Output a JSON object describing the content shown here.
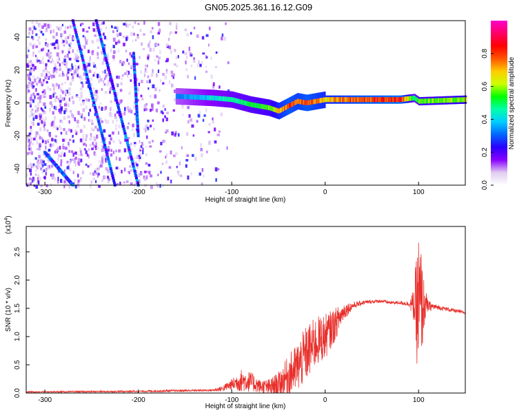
{
  "figure_title": "GN05.2025.361.16.12.G09",
  "chart_data": [
    {
      "type": "heatmap",
      "name": "spectrogram",
      "xlabel": "Height of straight line (km)",
      "ylabel": "Frequency (Hz)",
      "xlim": [
        -320,
        150
      ],
      "ylim": [
        -50,
        50
      ],
      "xticks": [
        -300,
        -200,
        -100,
        0,
        100
      ],
      "yticks": [
        -40,
        -20,
        0,
        20,
        40
      ],
      "colorbar": {
        "label": "Normalized spectral amplitude",
        "range": [
          0,
          1
        ],
        "ticks": [
          "0.0",
          "0.2",
          "0.4",
          "0.6",
          "0.8"
        ],
        "colormap": [
          "#ffffff",
          "#e0ccf0",
          "#8800ff",
          "#2a00ff",
          "#0066ff",
          "#00ccff",
          "#00ffaa",
          "#00ff00",
          "#ccff00",
          "#ffcc00",
          "#ff5500",
          "#ff0000",
          "#ff0066",
          "#ff00cc"
        ]
      },
      "dominant_ridge": {
        "description": "main signal line near 0 Hz",
        "x": [
          -160,
          -120,
          -100,
          -80,
          -60,
          -50,
          -40,
          -30,
          -20,
          -10,
          0,
          40,
          80,
          95,
          100,
          150
        ],
        "frequency": [
          4,
          3,
          2,
          -1,
          -3,
          -5,
          -2,
          1,
          0,
          1,
          2,
          2,
          2,
          3,
          1,
          2
        ],
        "amplitude": [
          0.35,
          0.45,
          0.5,
          0.55,
          0.6,
          0.75,
          0.85,
          0.8,
          0.85,
          0.8,
          0.75,
          0.85,
          0.9,
          0.5,
          0.6,
          0.65
        ]
      },
      "diagonal_streaks": [
        {
          "x0": -270,
          "f0": 50,
          "x1": -225,
          "f1": -50
        },
        {
          "x0": -245,
          "f0": 50,
          "x1": -200,
          "f1": -50
        },
        {
          "x0": -300,
          "f0": -30,
          "x1": -270,
          "f1": -50
        },
        {
          "x0": -205,
          "f0": 30,
          "x1": -200,
          "f1": -20
        }
      ],
      "noise_region": {
        "x_start": -320,
        "x_end": -130,
        "f_min": -50,
        "f_max": 50
      }
    },
    {
      "type": "line",
      "name": "snr",
      "xlabel": "Height of straight line (km)",
      "ylabel": "SNR (10 * v/v)",
      "scale_label": "(x10",
      "scale_exponent": "4",
      "xlim": [
        -320,
        150
      ],
      "ylim": [
        0,
        2.95
      ],
      "xticks": [
        -300,
        -200,
        -100,
        0,
        100
      ],
      "yticks": [
        "0.0",
        "0.5",
        "1.0",
        "1.5",
        "2.0",
        "2.5"
      ],
      "color": "#e8302c",
      "envelope": {
        "x": [
          -320,
          -200,
          -160,
          -120,
          -110,
          -100,
          -90,
          -80,
          -70,
          -60,
          -50,
          -40,
          -30,
          -20,
          -10,
          0,
          10,
          20,
          30,
          40,
          50,
          60,
          70,
          80,
          90,
          95,
          100,
          103,
          106,
          110,
          120,
          150
        ],
        "base": [
          0.02,
          0.03,
          0.04,
          0.05,
          0.08,
          0.15,
          0.22,
          0.2,
          0.12,
          0.1,
          0.15,
          0.3,
          0.45,
          0.7,
          0.9,
          1.0,
          1.2,
          1.45,
          1.55,
          1.6,
          1.62,
          1.63,
          1.6,
          1.6,
          1.58,
          1.55,
          1.5,
          1.55,
          1.55,
          1.54,
          1.52,
          1.42
        ],
        "jitter": [
          0.01,
          0.015,
          0.02,
          0.02,
          0.05,
          0.1,
          0.2,
          0.18,
          0.12,
          0.15,
          0.22,
          0.35,
          0.45,
          0.5,
          0.45,
          0.4,
          0.3,
          0.15,
          0.06,
          0.04,
          0.03,
          0.03,
          0.03,
          0.03,
          0.05,
          0.3,
          1.4,
          1.0,
          0.4,
          0.1,
          0.04,
          0.03
        ]
      }
    }
  ]
}
